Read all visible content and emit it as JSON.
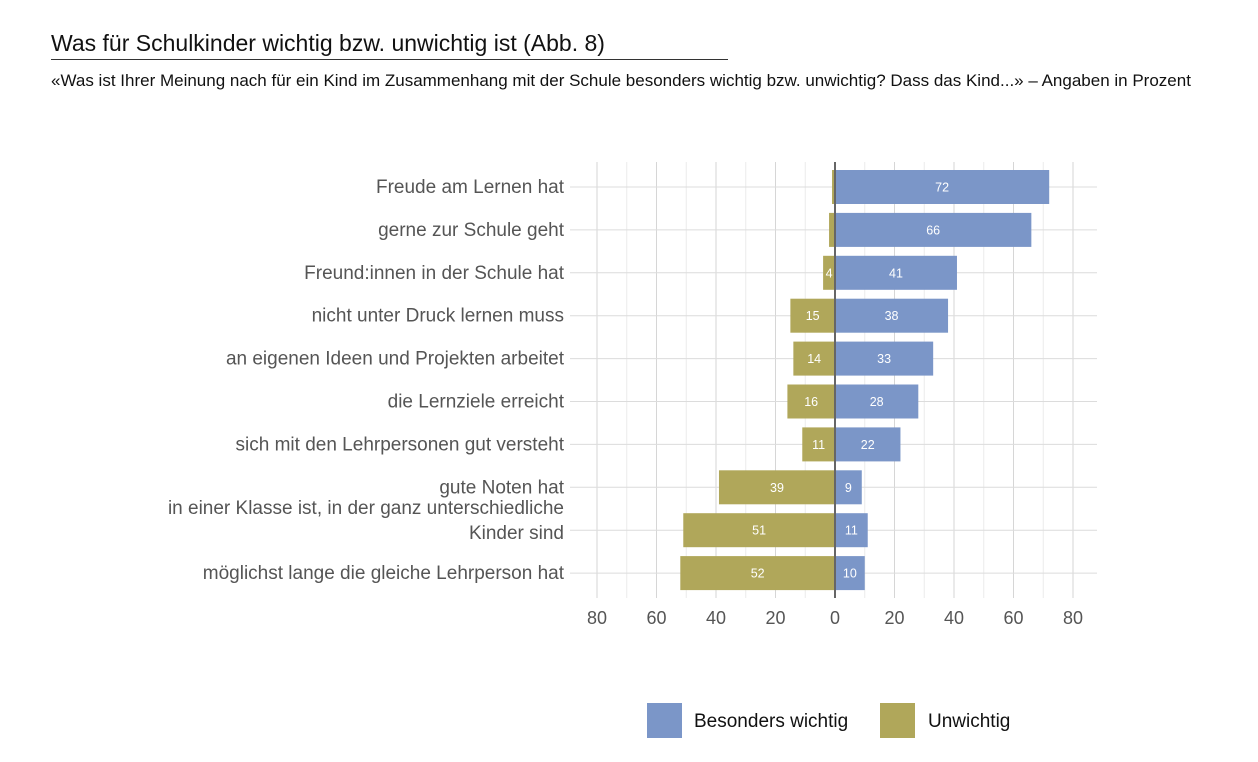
{
  "chart_data": {
    "type": "bar",
    "orientation": "horizontal-diverging",
    "title": "Was für Schulkinder wichtig bzw. unwichtig ist  (Abb. 8)",
    "subtitle": "«Was ist Ihrer Meinung nach für ein Kind im Zusammenhang mit der Schule besonders wichtig bzw. unwichtig? Dass das Kind...» – Angaben in Prozent",
    "categories": [
      [
        "Freude am Lernen hat"
      ],
      [
        "gerne zur Schule geht"
      ],
      [
        "Freund:innen in der Schule hat"
      ],
      [
        "nicht unter Druck lernen muss"
      ],
      [
        "an eigenen Ideen und Projekten arbeitet"
      ],
      [
        "die Lernziele erreicht"
      ],
      [
        "sich mit den Lehrpersonen gut versteht"
      ],
      [
        "gute Noten hat"
      ],
      [
        "in einer Klasse ist, in der ganz unterschiedliche",
        "Kinder sind"
      ],
      [
        "möglichst lange die gleiche Lehrperson hat"
      ]
    ],
    "series": [
      {
        "name": "Besonders wichtig",
        "color": "#7b96c8",
        "side": "right",
        "values": [
          72,
          66,
          41,
          38,
          33,
          28,
          22,
          9,
          11,
          10
        ],
        "labels": [
          "72",
          "66",
          "41",
          "38",
          "33",
          "28",
          "22",
          "9",
          "11",
          "10"
        ]
      },
      {
        "name": "Unwichtig",
        "color": "#b0a75a",
        "side": "left",
        "values": [
          1,
          2,
          4,
          15,
          14,
          16,
          11,
          39,
          51,
          52
        ],
        "labels": [
          "",
          "",
          "4",
          "15",
          "14",
          "16",
          "11",
          "39",
          "51",
          "52"
        ]
      }
    ],
    "xticks": [
      "80",
      "60",
      "40",
      "20",
      "0",
      "20",
      "40",
      "60",
      "80"
    ],
    "xtick_values": [
      -80,
      -60,
      -40,
      -20,
      0,
      20,
      40,
      60,
      80
    ],
    "xlim": [
      -89,
      88
    ],
    "grid": true,
    "legend": "bottom-right"
  }
}
